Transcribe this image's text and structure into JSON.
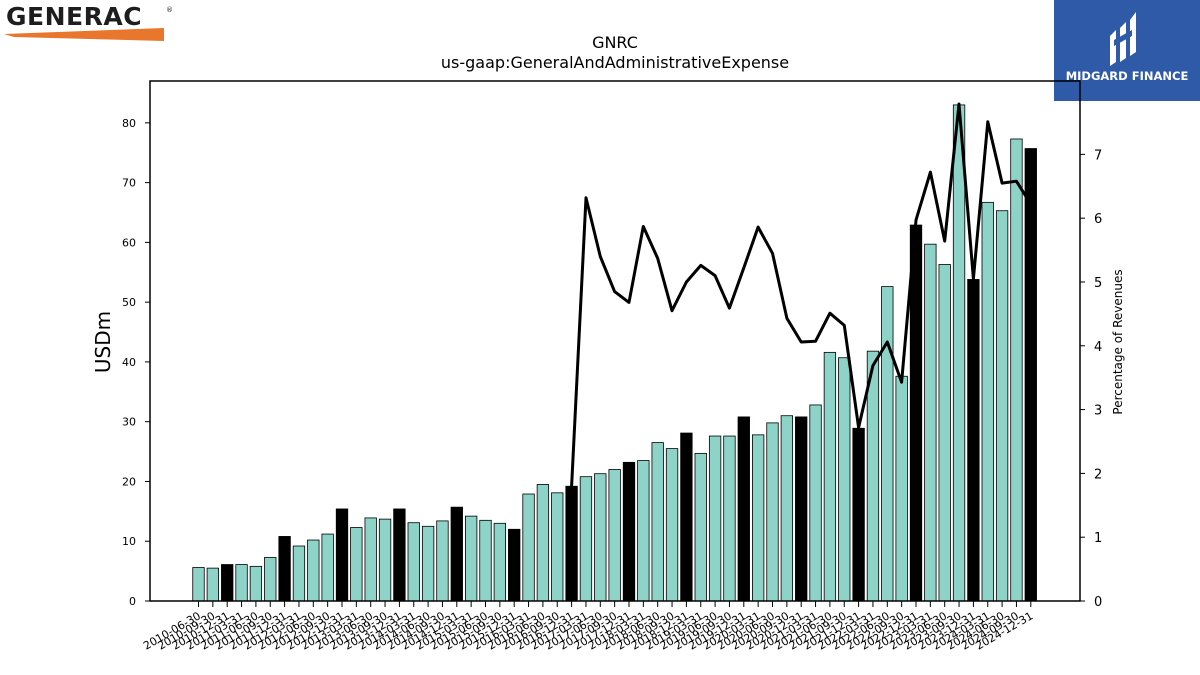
{
  "branding": {
    "left_logo_text": "GENERAC",
    "left_logo_mark": "®",
    "right_logo_text": "MIDGARD FINANCE",
    "colors": {
      "generac_orange": "#e8762c",
      "midgard_blue": "#2f5aa8"
    }
  },
  "chart_data": {
    "type": "bar",
    "title": "GNRC",
    "subtitle": "us-gaap:GeneralAndAdministrativeExpense",
    "ylabel": "USDm",
    "y2label": "Percentage of Revenues",
    "ylim": [
      0,
      87
    ],
    "y2lim": [
      0,
      8.15
    ],
    "yticks": [
      0,
      10,
      20,
      30,
      40,
      50,
      60,
      70,
      80
    ],
    "y2ticks": [
      0,
      1,
      2,
      3,
      4,
      5,
      6,
      7
    ],
    "colors": {
      "quarter": "#8dd3c7",
      "annual": "#000000",
      "line": "#000000"
    },
    "categories": [
      "2010-06-30",
      "2010-09-30",
      "2010-12-31",
      "2011-03-31",
      "2011-06-30",
      "2011-09-30",
      "2011-12-31",
      "2012-03-31",
      "2012-06-30",
      "2012-09-30",
      "2012-12-31",
      "2013-03-31",
      "2013-06-30",
      "2013-09-30",
      "2013-12-31",
      "2014-03-31",
      "2014-06-30",
      "2014-09-30",
      "2014-12-31",
      "2015-03-31",
      "2015-06-30",
      "2015-09-30",
      "2015-12-31",
      "2016-03-31",
      "2016-06-30",
      "2016-09-30",
      "2016-12-31",
      "2017-03-31",
      "2017-06-30",
      "2017-09-30",
      "2017-12-31",
      "2018-03-31",
      "2018-06-30",
      "2018-09-30",
      "2018-12-31",
      "2019-03-31",
      "2019-06-30",
      "2019-09-30",
      "2019-12-31",
      "2020-03-31",
      "2020-06-30",
      "2020-09-30",
      "2020-12-31",
      "2021-03-31",
      "2021-06-30",
      "2021-09-30",
      "2021-12-31",
      "2022-03-31",
      "2022-06-30",
      "2022-09-30",
      "2022-12-31",
      "2023-03-31",
      "2023-06-30",
      "2023-09-30",
      "2023-12-31",
      "2024-03-31",
      "2024-06-30",
      "2024-09-30",
      "2024-12-31"
    ],
    "annual_flags": [
      0,
      0,
      1,
      0,
      0,
      0,
      1,
      0,
      0,
      0,
      1,
      0,
      0,
      0,
      1,
      0,
      0,
      0,
      1,
      0,
      0,
      0,
      1,
      0,
      0,
      0,
      1,
      0,
      0,
      0,
      1,
      0,
      0,
      0,
      1,
      0,
      0,
      0,
      1,
      0,
      0,
      0,
      1,
      0,
      0,
      0,
      1,
      0,
      0,
      0,
      1,
      0,
      0,
      0,
      1,
      0,
      0,
      0,
      1
    ],
    "values": [
      5.6,
      5.5,
      6.1,
      6.1,
      5.8,
      7.3,
      10.8,
      9.2,
      10.2,
      11.2,
      15.4,
      12.3,
      13.9,
      13.7,
      15.4,
      13.1,
      12.5,
      13.4,
      15.7,
      14.2,
      13.5,
      13.0,
      12.0,
      17.9,
      19.5,
      18.1,
      19.2,
      20.8,
      21.3,
      22.0,
      23.2,
      23.5,
      26.5,
      25.5,
      28.1,
      24.7,
      27.6,
      27.6,
      30.8,
      27.8,
      29.8,
      31.0,
      30.8,
      32.8,
      41.6,
      40.7,
      28.9,
      41.8,
      52.6,
      37.6,
      62.9,
      59.7,
      56.3,
      83.0,
      53.8,
      66.7,
      65.3,
      77.3,
      75.7
    ],
    "line": {
      "name": "Percentage of Revenues",
      "values": [
        null,
        null,
        null,
        null,
        null,
        null,
        null,
        null,
        null,
        null,
        null,
        null,
        null,
        null,
        null,
        null,
        null,
        null,
        null,
        null,
        null,
        null,
        null,
        null,
        null,
        null,
        1.8,
        6.32,
        5.4,
        4.85,
        4.68,
        5.87,
        5.37,
        4.55,
        5.0,
        5.26,
        5.1,
        4.59,
        5.22,
        5.86,
        5.45,
        4.43,
        4.06,
        4.07,
        4.51,
        4.32,
        2.72,
        3.69,
        4.06,
        3.43,
        5.97,
        6.72,
        5.64,
        7.79,
        5.05,
        7.51,
        6.55,
        6.58,
        6.22
      ]
    }
  }
}
